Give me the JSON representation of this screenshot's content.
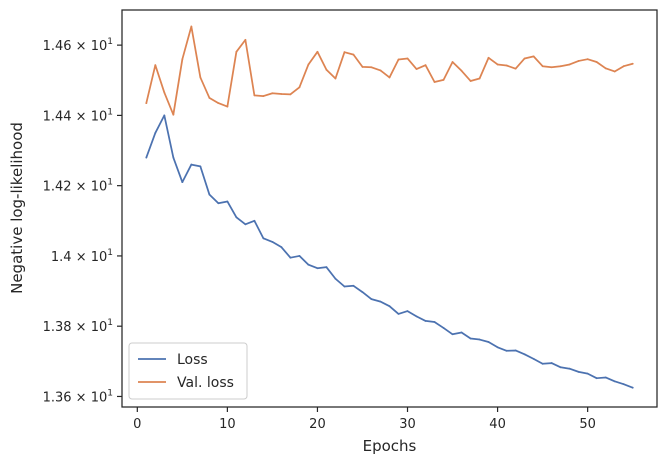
{
  "chart_data": {
    "type": "line",
    "xlabel": "Epochs",
    "ylabel": "Negative log-likelihood",
    "xlim": [
      -1.7,
      57.7
    ],
    "ylim": [
      13.57,
      14.7
    ],
    "x_ticks": [
      0,
      10,
      20,
      30,
      40,
      50
    ],
    "y_ticks": [
      {
        "value": 13.6,
        "mantissa": "1.36",
        "times": "×",
        "base": "10",
        "exp": "1"
      },
      {
        "value": 13.8,
        "mantissa": "1.38",
        "times": "×",
        "base": "10",
        "exp": "1"
      },
      {
        "value": 14.0,
        "mantissa": "1.4",
        "times": "×",
        "base": "10",
        "exp": "1"
      },
      {
        "value": 14.2,
        "mantissa": "1.42",
        "times": "×",
        "base": "10",
        "exp": "1"
      },
      {
        "value": 14.4,
        "mantissa": "1.44",
        "times": "×",
        "base": "10",
        "exp": "1"
      },
      {
        "value": 14.6,
        "mantissa": "1.46",
        "times": "×",
        "base": "10",
        "exp": "1"
      }
    ],
    "grid": false,
    "legend_position": "lower-left",
    "x": [
      1,
      2,
      3,
      4,
      5,
      6,
      7,
      8,
      9,
      10,
      11,
      12,
      13,
      14,
      15,
      16,
      17,
      18,
      19,
      20,
      21,
      22,
      23,
      24,
      25,
      26,
      27,
      28,
      29,
      30,
      31,
      32,
      33,
      34,
      35,
      36,
      37,
      38,
      39,
      40,
      41,
      42,
      43,
      44,
      45,
      46,
      47,
      48,
      49,
      50,
      51,
      52,
      53,
      54,
      55
    ],
    "series": [
      {
        "name": "Loss",
        "color": "#4c72b0",
        "values": [
          14.28,
          14.35,
          14.4,
          14.28,
          14.21,
          14.26,
          14.255,
          14.175,
          14.15,
          14.155,
          14.11,
          14.09,
          14.1,
          14.05,
          14.04,
          14.025,
          13.995,
          14.0,
          13.975,
          13.965,
          13.968,
          13.935,
          13.913,
          13.915,
          13.897,
          13.877,
          13.87,
          13.857,
          13.835,
          13.843,
          13.828,
          13.815,
          13.812,
          13.795,
          13.777,
          13.782,
          13.765,
          13.762,
          13.755,
          13.74,
          13.73,
          13.731,
          13.72,
          13.707,
          13.693,
          13.695,
          13.683,
          13.679,
          13.67,
          13.665,
          13.652,
          13.654,
          13.643,
          13.635,
          13.625
        ]
      },
      {
        "name": "Val. loss",
        "color": "#dd8452",
        "values": [
          14.435,
          14.543,
          14.465,
          14.402,
          14.56,
          14.653,
          14.508,
          14.45,
          14.435,
          14.425,
          14.581,
          14.615,
          14.457,
          14.455,
          14.463,
          14.461,
          14.46,
          14.48,
          14.545,
          14.581,
          14.53,
          14.505,
          14.58,
          14.573,
          14.538,
          14.537,
          14.528,
          14.508,
          14.559,
          14.562,
          14.532,
          14.543,
          14.495,
          14.501,
          14.552,
          14.527,
          14.498,
          14.505,
          14.564,
          14.545,
          14.542,
          14.533,
          14.562,
          14.568,
          14.54,
          14.537,
          14.54,
          14.545,
          14.555,
          14.56,
          14.552,
          14.534,
          14.525,
          14.54,
          14.547
        ]
      }
    ]
  }
}
